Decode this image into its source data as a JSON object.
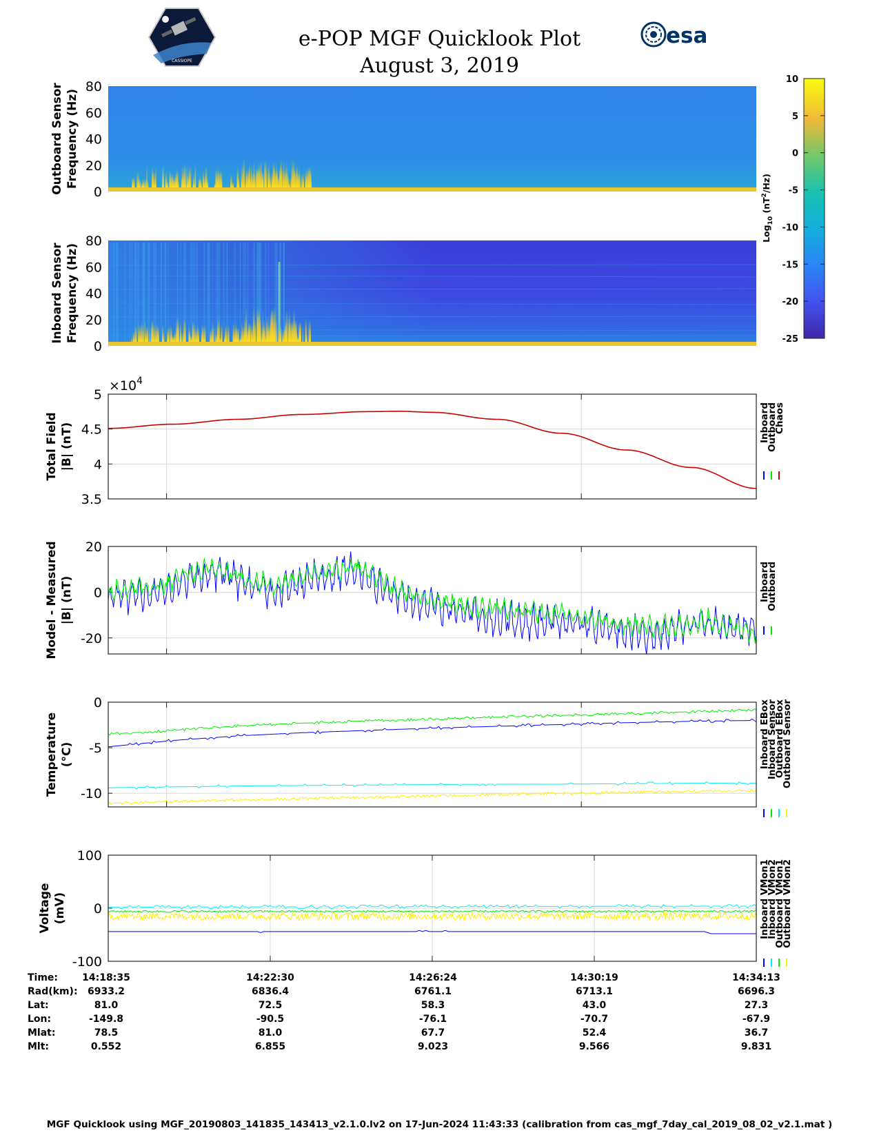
{
  "title": {
    "line1": "e-POP MGF Quicklook Plot",
    "line2": "August 3, 2019"
  },
  "logos": {
    "cassiope_text": "CASSIOPE",
    "esa_text": "esa",
    "cassiope_icon": "cassiope-mission-patch-icon",
    "esa_icon": "esa-logo-icon"
  },
  "colors": {
    "inboard": "#0000ff",
    "outboard": "#00ee00",
    "chaos": "#cc0000",
    "cyan": "#00eeee",
    "yellow": "#ffee00",
    "grid": "#d8d8d8"
  },
  "colorbar": {
    "ticks": [
      "10",
      "5",
      "0",
      "-5",
      "-10",
      "-15",
      "-20",
      "-25"
    ],
    "label_main": "Log",
    "label_sub": "10",
    "label_unit": " (nT",
    "label_sup": "2",
    "label_end": "/Hz)"
  },
  "chart_data": [
    {
      "type": "heatmap",
      "name": "outboard-spectrogram",
      "ylabel": [
        "Outboard Sensor",
        "Frequency (Hz)"
      ],
      "ylim": [
        0,
        80
      ],
      "yticks": [
        "80",
        "60",
        "40",
        "20",
        "0"
      ],
      "clim": [
        -25,
        10
      ]
    },
    {
      "type": "heatmap",
      "name": "inboard-spectrogram",
      "ylabel": [
        "Inboard Sensor",
        "Frequency (Hz)"
      ],
      "ylim": [
        0,
        80
      ],
      "yticks": [
        "80",
        "60",
        "40",
        "20",
        "0"
      ],
      "clim": [
        -25,
        10
      ]
    },
    {
      "type": "line",
      "name": "total-field",
      "ylabel": [
        "Total Field",
        "|B| (nT)"
      ],
      "ylim": [
        3.5,
        5
      ],
      "yticks": [
        "5",
        "4.5",
        "4",
        "3.5"
      ],
      "exponent": "×10",
      "exponent_sup": "4",
      "legend": [
        "Inboard",
        "Outboard",
        "Chaos"
      ],
      "series": [
        {
          "name": "Chaos",
          "x": [
            0,
            0.1,
            0.2,
            0.3,
            0.4,
            0.45,
            0.5,
            0.6,
            0.7,
            0.8,
            0.9,
            1.0
          ],
          "values": [
            4.51,
            4.57,
            4.64,
            4.71,
            4.75,
            4.755,
            4.74,
            4.64,
            4.44,
            4.2,
            3.95,
            3.65
          ]
        }
      ]
    },
    {
      "type": "line",
      "name": "model-measured",
      "ylabel": [
        "Model - Measured",
        "|B| (nT)"
      ],
      "ylim": [
        -27,
        20
      ],
      "yticks": [
        "20",
        "0",
        "-20"
      ],
      "legend": [
        "Inboard",
        "Outboard"
      ],
      "series": [
        {
          "name": "Outboard",
          "x": [
            0,
            0.09,
            0.13,
            0.17,
            0.22,
            0.26,
            0.33,
            0.38,
            0.44,
            0.5,
            0.56,
            0.64,
            0.72,
            0.8,
            0.85,
            0.89,
            0.92,
            0.96,
            1.0
          ],
          "values": [
            0,
            3,
            9,
            10,
            5,
            3,
            9,
            12,
            2,
            -3,
            -6,
            -8,
            -10,
            -15,
            -15,
            -14,
            -13,
            -15,
            -17
          ]
        },
        {
          "name": "Inboard",
          "x": [
            0,
            0.09,
            0.13,
            0.17,
            0.22,
            0.26,
            0.33,
            0.38,
            0.44,
            0.5,
            0.56,
            0.64,
            0.72,
            0.8,
            0.85,
            0.89,
            0.92,
            0.96,
            1.0
          ],
          "values": [
            -3,
            0,
            7,
            9,
            3,
            0,
            7,
            9,
            -1,
            -6,
            -10,
            -13,
            -14,
            -18,
            -19,
            -16,
            -14,
            -16,
            -15
          ]
        }
      ]
    },
    {
      "type": "line",
      "name": "temperature",
      "ylabel": [
        "Temperature",
        "(°C)"
      ],
      "ylim": [
        -11.5,
        0
      ],
      "yticks": [
        "0",
        "-5",
        "-10"
      ],
      "legend": [
        "Inboard EBox",
        "Inboard Sensor",
        "Outboard EBox",
        "Outboard Sensor"
      ],
      "series": [
        {
          "name": "Inboard EBox",
          "x": [
            0,
            0.1,
            0.2,
            0.3,
            0.4,
            0.5,
            0.6,
            0.7,
            0.8,
            0.9,
            1.0
          ],
          "values": [
            -3.5,
            -3.1,
            -2.6,
            -2.3,
            -2.05,
            -1.85,
            -1.65,
            -1.45,
            -1.25,
            -1.05,
            -0.85
          ]
        },
        {
          "name": "Inboard Sensor",
          "x": [
            0,
            0.1,
            0.2,
            0.3,
            0.4,
            0.5,
            0.6,
            0.7,
            0.8,
            0.9,
            1.0
          ],
          "values": [
            -4.9,
            -4.2,
            -3.7,
            -3.35,
            -3.1,
            -2.85,
            -2.65,
            -2.45,
            -2.25,
            -2.1,
            -2.0
          ]
        },
        {
          "name": "Outboard EBox",
          "x": [
            0,
            0.1,
            0.2,
            0.3,
            0.4,
            0.5,
            0.6,
            0.7,
            0.8,
            0.9,
            1.0
          ],
          "values": [
            -9.4,
            -9.3,
            -9.2,
            -9.15,
            -9.1,
            -9.05,
            -9.0,
            -9.0,
            -8.95,
            -8.9,
            -8.9
          ]
        },
        {
          "name": "Outboard Sensor",
          "x": [
            0,
            0.1,
            0.2,
            0.3,
            0.4,
            0.5,
            0.6,
            0.7,
            0.8,
            0.9,
            1.0
          ],
          "values": [
            -11.1,
            -10.9,
            -10.75,
            -10.6,
            -10.45,
            -10.3,
            -10.15,
            -10.0,
            -9.9,
            -9.8,
            -9.7
          ]
        }
      ]
    },
    {
      "type": "line",
      "name": "voltage",
      "ylabel": [
        "Voltage",
        "(mV)"
      ],
      "ylim": [
        -100,
        100
      ],
      "yticks": [
        "100",
        "0",
        "-100"
      ],
      "legend": [
        "Inboard VMon1",
        "Inboard VMon2",
        "Outboard VMon1",
        "Outboard VMon2"
      ],
      "series": [
        {
          "name": "Inboard VMon1",
          "x": [
            0,
            0.92,
            0.93,
            1.0
          ],
          "values": [
            -44,
            -44,
            -48,
            -48
          ]
        },
        {
          "name": "Inboard VMon2",
          "x": [
            0,
            1.0
          ],
          "values": [
            2,
            4
          ]
        },
        {
          "name": "Outboard VMon1",
          "x": [
            0,
            1.0
          ],
          "values": [
            -6,
            -6
          ]
        },
        {
          "name": "Outboard VMon2",
          "x": [
            0,
            1.0
          ],
          "values": [
            -15,
            -15
          ]
        }
      ]
    }
  ],
  "table": {
    "rows": [
      {
        "label": "Time:",
        "values": [
          "14:18:35",
          "14:22:30",
          "14:26:24",
          "14:30:19",
          "14:34:13"
        ]
      },
      {
        "label": "Rad(km):",
        "values": [
          "6933.2",
          "6836.4",
          "6761.1",
          "6713.1",
          "6696.3"
        ]
      },
      {
        "label": "Lat:",
        "values": [
          "81.0",
          "72.5",
          "58.3",
          "43.0",
          "27.3"
        ]
      },
      {
        "label": "Lon:",
        "values": [
          "-149.8",
          "-90.5",
          "-76.1",
          "-70.7",
          "-67.9"
        ]
      },
      {
        "label": "Mlat:",
        "values": [
          "78.5",
          "81.0",
          "67.7",
          "52.4",
          "36.7"
        ]
      },
      {
        "label": "Mlt:",
        "values": [
          "0.552",
          "6.855",
          "9.023",
          "9.566",
          "9.831"
        ]
      }
    ]
  },
  "footer": "MGF Quicklook using MGF_20190803_141835_143413_v2.1.0.lv2 on 17-Jun-2024 11:43:33 (calibration from cas_mgf_7day_cal_2019_08_02_v2.1.mat )"
}
